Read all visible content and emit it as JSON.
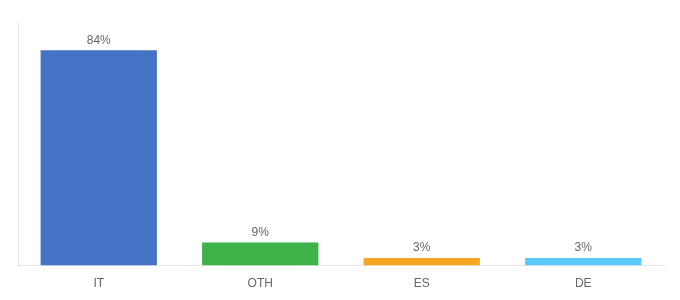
{
  "chart_data": {
    "type": "bar",
    "categories": [
      "IT",
      "OTH",
      "ES",
      "DE"
    ],
    "values": [
      84,
      9,
      3,
      3
    ],
    "value_labels": [
      "84%",
      "9%",
      "3%",
      "3%"
    ],
    "colors": [
      "#4472c4",
      "#3db34a",
      "#f5a623",
      "#5bc8f5"
    ],
    "ylim": [
      0,
      95
    ],
    "grid": false,
    "data_labels": true,
    "tick_labels": "x"
  }
}
